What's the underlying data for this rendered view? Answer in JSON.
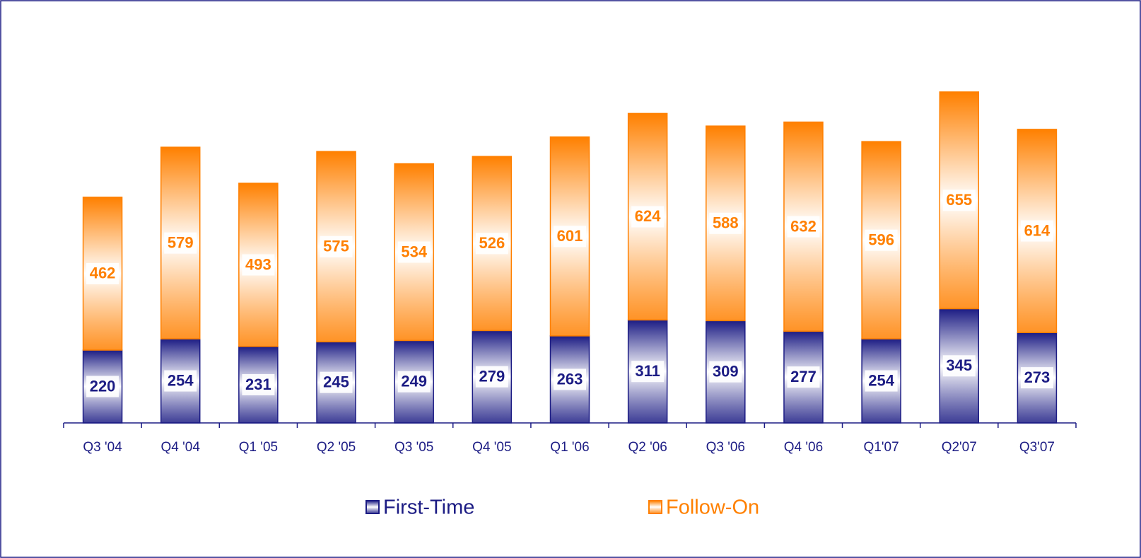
{
  "chart_data": {
    "type": "stacked_bar",
    "categories": [
      "Q3 '04",
      "Q4 '04",
      "Q1 '05",
      "Q2 '05",
      "Q3 '05",
      "Q4 '05",
      "Q1 '06",
      "Q2 '06",
      "Q3 '06",
      "Q4 '06",
      "Q1'07",
      "Q2'07",
      "Q3'07"
    ],
    "series": [
      {
        "name": "First-Time",
        "color": "#1c1c84",
        "values": [
          220,
          254,
          231,
          245,
          249,
          279,
          263,
          311,
          309,
          277,
          254,
          345,
          273
        ]
      },
      {
        "name": "Follow-On",
        "color": "#ff8000",
        "values": [
          462,
          579,
          493,
          575,
          534,
          526,
          601,
          624,
          588,
          632,
          596,
          655,
          614
        ]
      }
    ],
    "ylim": [
      0,
      1000
    ],
    "legend": "bottom"
  }
}
